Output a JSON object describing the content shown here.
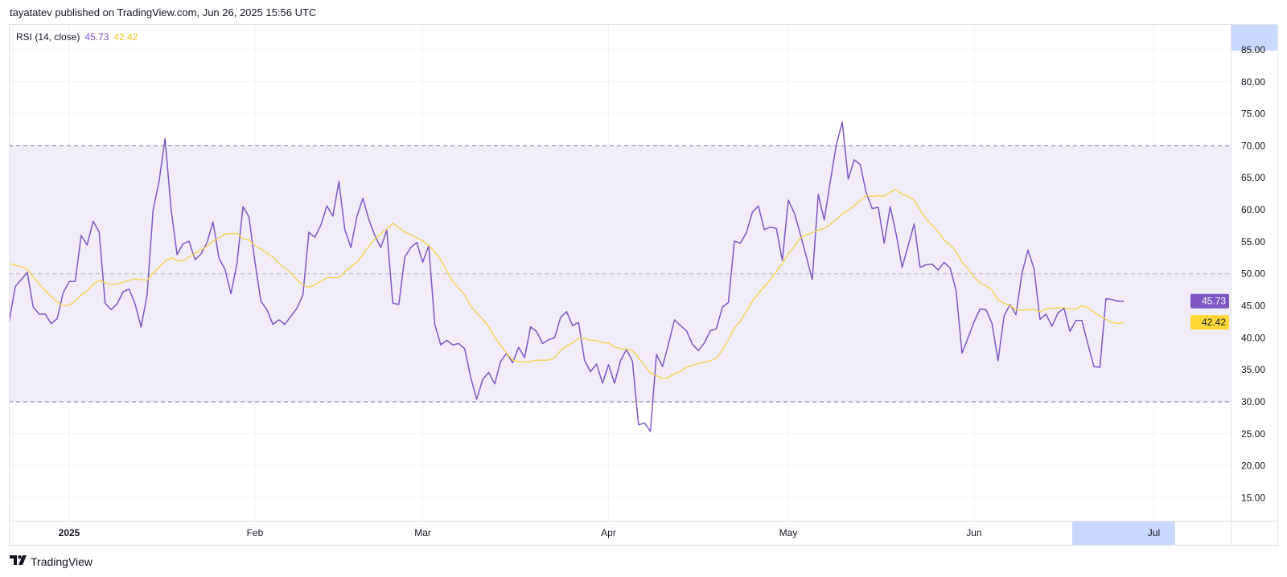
{
  "header": {
    "publisher_line": "tayatatev published on TradingView.com, Jun 26, 2025 15:56 UTC"
  },
  "legend": {
    "indicator": "RSI (14, close)",
    "rsi_value": "45.73",
    "ma_value": "42.42"
  },
  "footer": {
    "brand": "TradingView",
    "logo_icon": "tradingview-logo-icon"
  },
  "colors": {
    "rsi": "#7e57c2",
    "ma": "#f7d046",
    "band_fill": "#f0ecf8",
    "band_line": "#787b86",
    "highlight": "#c9d8fd",
    "grid": "#f0f3fa"
  },
  "chart_data": {
    "type": "line",
    "title": "RSI (14, close)",
    "ylim": [
      12,
      87
    ],
    "y_ticks": [
      "15.00",
      "20.00",
      "25.00",
      "30.00",
      "35.00",
      "40.00",
      "45.00",
      "50.00",
      "55.00",
      "60.00",
      "65.00",
      "70.00",
      "75.00",
      "80.00",
      "85.00"
    ],
    "x_ticks": [
      {
        "date": "2025-01-01",
        "label": "2025"
      },
      {
        "date": "2025-02-01",
        "label": "Feb"
      },
      {
        "date": "2025-03-01",
        "label": "Mar"
      },
      {
        "date": "2025-04-01",
        "label": "Apr"
      },
      {
        "date": "2025-05-01",
        "label": "May"
      },
      {
        "date": "2025-06-01",
        "label": "Jun"
      },
      {
        "date": "2025-07-01",
        "label": "Jul"
      }
    ],
    "bands": {
      "upper": 70,
      "middle": 50,
      "lower": 30
    },
    "grid": true,
    "last_values": {
      "rsi": "45.73",
      "ma": "42.42"
    },
    "x": [
      "2024-12-22",
      "2024-12-23",
      "2024-12-24",
      "2024-12-25",
      "2024-12-26",
      "2024-12-27",
      "2024-12-28",
      "2024-12-29",
      "2024-12-30",
      "2024-12-31",
      "2025-01-01",
      "2025-01-02",
      "2025-01-03",
      "2025-01-04",
      "2025-01-05",
      "2025-01-06",
      "2025-01-07",
      "2025-01-08",
      "2025-01-09",
      "2025-01-10",
      "2025-01-11",
      "2025-01-12",
      "2025-01-13",
      "2025-01-14",
      "2025-01-15",
      "2025-01-16",
      "2025-01-17",
      "2025-01-18",
      "2025-01-19",
      "2025-01-20",
      "2025-01-21",
      "2025-01-22",
      "2025-01-23",
      "2025-01-24",
      "2025-01-25",
      "2025-01-26",
      "2025-01-27",
      "2025-01-28",
      "2025-01-29",
      "2025-01-30",
      "2025-01-31",
      "2025-02-01",
      "2025-02-02",
      "2025-02-03",
      "2025-02-04",
      "2025-02-05",
      "2025-02-06",
      "2025-02-07",
      "2025-02-08",
      "2025-02-09",
      "2025-02-10",
      "2025-02-11",
      "2025-02-12",
      "2025-02-13",
      "2025-02-14",
      "2025-02-15",
      "2025-02-16",
      "2025-02-17",
      "2025-02-18",
      "2025-02-19",
      "2025-02-20",
      "2025-02-21",
      "2025-02-22",
      "2025-02-23",
      "2025-02-24",
      "2025-02-25",
      "2025-02-26",
      "2025-02-27",
      "2025-02-28",
      "2025-03-01",
      "2025-03-02",
      "2025-03-03",
      "2025-03-04",
      "2025-03-05",
      "2025-03-06",
      "2025-03-07",
      "2025-03-08",
      "2025-03-09",
      "2025-03-10",
      "2025-03-11",
      "2025-03-12",
      "2025-03-13",
      "2025-03-14",
      "2025-03-15",
      "2025-03-16",
      "2025-03-17",
      "2025-03-18",
      "2025-03-19",
      "2025-03-20",
      "2025-03-21",
      "2025-03-22",
      "2025-03-23",
      "2025-03-24",
      "2025-03-25",
      "2025-03-26",
      "2025-03-27",
      "2025-03-28",
      "2025-03-29",
      "2025-03-30",
      "2025-03-31",
      "2025-04-01",
      "2025-04-02",
      "2025-04-03",
      "2025-04-04",
      "2025-04-05",
      "2025-04-06",
      "2025-04-07",
      "2025-04-08",
      "2025-04-09",
      "2025-04-10",
      "2025-04-11",
      "2025-04-12",
      "2025-04-13",
      "2025-04-14",
      "2025-04-15",
      "2025-04-16",
      "2025-04-17",
      "2025-04-18",
      "2025-04-19",
      "2025-04-20",
      "2025-04-21",
      "2025-04-22",
      "2025-04-23",
      "2025-04-24",
      "2025-04-25",
      "2025-04-26",
      "2025-04-27",
      "2025-04-28",
      "2025-04-29",
      "2025-04-30",
      "2025-05-01",
      "2025-05-02",
      "2025-05-03",
      "2025-05-04",
      "2025-05-05",
      "2025-05-06",
      "2025-05-07",
      "2025-05-08",
      "2025-05-09",
      "2025-05-10",
      "2025-05-11",
      "2025-05-12",
      "2025-05-13",
      "2025-05-14",
      "2025-05-15",
      "2025-05-16",
      "2025-05-17",
      "2025-05-18",
      "2025-05-19",
      "2025-05-20",
      "2025-05-21",
      "2025-05-22",
      "2025-05-23",
      "2025-05-24",
      "2025-05-25",
      "2025-05-26",
      "2025-05-27",
      "2025-05-28",
      "2025-05-29",
      "2025-05-30",
      "2025-05-31",
      "2025-06-01",
      "2025-06-02",
      "2025-06-03",
      "2025-06-04",
      "2025-06-05",
      "2025-06-06",
      "2025-06-07",
      "2025-06-08",
      "2025-06-09",
      "2025-06-10",
      "2025-06-11",
      "2025-06-12",
      "2025-06-13",
      "2025-06-14",
      "2025-06-15",
      "2025-06-16",
      "2025-06-17",
      "2025-06-18",
      "2025-06-19",
      "2025-06-20",
      "2025-06-21",
      "2025-06-22",
      "2025-06-23",
      "2025-06-24",
      "2025-06-25",
      "2025-06-26"
    ],
    "series": [
      {
        "key": "rsi",
        "values": [
          42.6,
          48.0,
          49.1,
          50.2,
          44.8,
          43.7,
          43.7,
          42.2,
          43.0,
          47.0,
          48.8,
          48.8,
          56.0,
          54.5,
          58.2,
          56.5,
          45.4,
          44.4,
          45.3,
          47.2,
          47.6,
          45.3,
          41.7,
          46.7,
          59.9,
          64.5,
          71.1,
          60.1,
          53.0,
          54.7,
          55.1,
          52.2,
          53.1,
          54.9,
          58.1,
          52.4,
          50.7,
          46.9,
          51.6,
          60.5,
          58.9,
          51.8,
          45.7,
          44.4,
          42.1,
          42.8,
          42.1,
          43.4,
          44.6,
          46.7,
          56.5,
          55.7,
          57.6,
          60.6,
          59.0,
          64.4,
          56.9,
          54.1,
          58.9,
          61.8,
          58.5,
          56.0,
          54.1,
          56.8,
          45.4,
          45.2,
          52.6,
          54.1,
          54.9,
          51.8,
          54.4,
          42.1,
          38.9,
          39.6,
          38.9,
          39.1,
          38.3,
          33.8,
          30.4,
          33.5,
          34.6,
          32.8,
          36.3,
          37.6,
          36.1,
          38.5,
          36.9,
          41.7,
          41.0,
          39.1,
          39.7,
          40.0,
          43.2,
          44.1,
          41.9,
          42.4,
          36.5,
          34.7,
          35.9,
          32.9,
          35.8,
          32.9,
          36.4,
          38.2,
          36.3,
          26.4,
          26.7,
          25.4,
          37.4,
          35.5,
          39.0,
          42.8,
          41.9,
          41.1,
          39.0,
          38.0,
          39.2,
          41.1,
          41.4,
          44.8,
          45.5,
          55.1,
          54.8,
          56.4,
          59.6,
          60.6,
          56.9,
          57.3,
          57.1,
          52.1,
          61.5,
          59.5,
          56.2,
          52.7,
          49.1,
          62.4,
          58.4,
          64.4,
          70.1,
          73.7,
          64.8,
          67.8,
          67.1,
          62.7,
          60.2,
          60.4,
          54.8,
          60.5,
          56.2,
          51.0,
          54.4,
          57.8,
          51.0,
          51.4,
          51.5,
          50.6,
          51.8,
          50.9,
          47.4,
          37.6,
          40.0,
          42.5,
          44.5,
          44.4,
          42.2,
          36.4,
          43.4,
          45.2,
          43.6,
          50.1,
          53.7,
          50.8,
          42.9,
          43.7,
          41.8,
          43.9,
          44.6,
          41.0,
          42.7,
          42.7,
          39.0,
          35.5,
          35.4,
          46.1,
          46.0,
          45.7,
          45.73
        ]
      },
      {
        "key": "ma",
        "values": [
          51.6,
          51.3,
          51.1,
          50.7,
          49.5,
          48.4,
          47.4,
          46.5,
          45.6,
          45.0,
          45.1,
          45.7,
          46.7,
          47.3,
          48.4,
          49.0,
          48.6,
          48.3,
          48.4,
          48.7,
          49.0,
          49.2,
          49.1,
          49.0,
          50.1,
          51.0,
          52.0,
          52.5,
          52.1,
          52.0,
          52.6,
          53.2,
          53.7,
          54.3,
          55.1,
          55.6,
          56.2,
          56.3,
          56.3,
          55.5,
          55.3,
          54.4,
          53.9,
          53.2,
          52.6,
          51.6,
          50.9,
          50.1,
          49.1,
          48.2,
          47.9,
          48.3,
          48.8,
          49.4,
          49.4,
          49.4,
          50.3,
          51.1,
          51.8,
          53.0,
          54.3,
          55.4,
          56.3,
          57.0,
          57.9,
          57.2,
          56.5,
          56.1,
          55.6,
          55.2,
          54.4,
          53.4,
          52.2,
          50.5,
          48.8,
          47.8,
          46.7,
          44.9,
          43.9,
          42.9,
          41.7,
          40.1,
          38.8,
          37.6,
          36.5,
          36.3,
          36.2,
          36.3,
          36.5,
          36.5,
          36.5,
          36.9,
          38.0,
          38.7,
          39.2,
          39.9,
          39.9,
          39.6,
          39.6,
          39.2,
          39.2,
          38.6,
          38.3,
          38.2,
          38.0,
          36.9,
          35.7,
          34.5,
          34.1,
          33.6,
          33.8,
          34.4,
          34.8,
          35.4,
          35.7,
          36.0,
          36.2,
          36.4,
          36.8,
          38.2,
          39.7,
          41.5,
          42.6,
          44.1,
          45.7,
          46.9,
          48.0,
          49.1,
          50.4,
          51.6,
          53.1,
          54.3,
          55.6,
          56.1,
          56.4,
          56.8,
          57.1,
          57.7,
          58.5,
          59.4,
          59.9,
          60.6,
          61.5,
          62.2,
          62.1,
          62.2,
          62.1,
          62.7,
          63.2,
          62.4,
          62.1,
          61.5,
          60.0,
          58.6,
          57.6,
          56.6,
          55.3,
          54.5,
          53.5,
          51.8,
          50.8,
          49.5,
          48.6,
          48.1,
          47.4,
          45.9,
          45.4,
          45.0,
          44.4,
          44.3,
          44.4,
          44.4,
          44.1,
          44.5,
          44.6,
          44.7,
          44.7,
          44.5,
          44.5,
          45.0,
          44.7,
          44.0,
          43.4,
          42.9,
          42.4,
          42.2,
          42.42
        ]
      }
    ]
  }
}
